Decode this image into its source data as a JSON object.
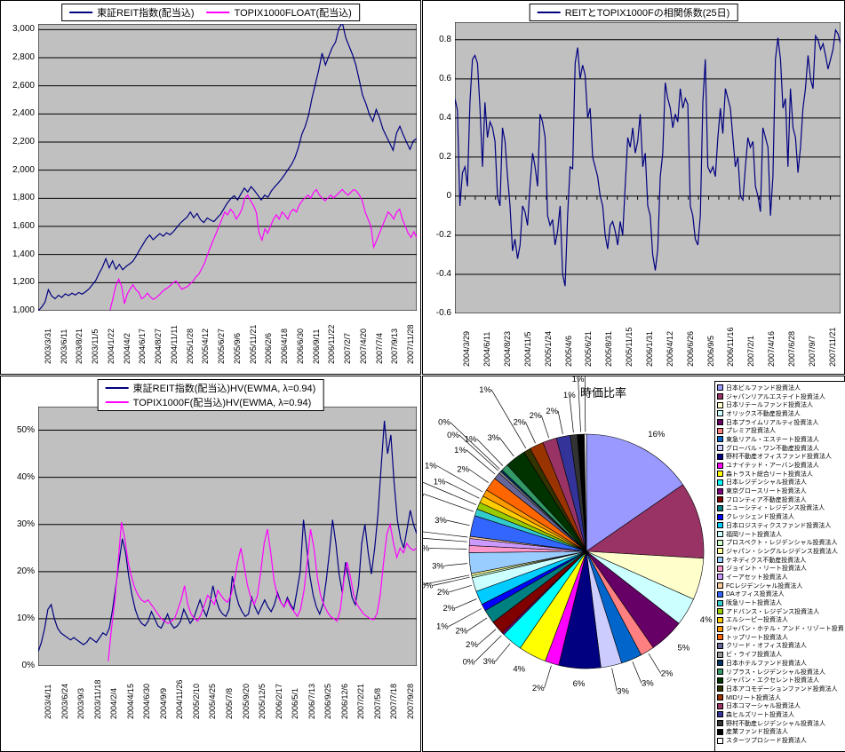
{
  "chart_data": [
    {
      "id": "reit_index",
      "type": "line",
      "title": "",
      "legend_position": "top",
      "plot_bg": "#C0C0C0",
      "grid": true,
      "ylim": [
        1000,
        3040
      ],
      "y_ticks": [
        {
          "v": 1000,
          "label": "1,000"
        },
        {
          "v": 1200,
          "label": "1,200"
        },
        {
          "v": 1400,
          "label": "1,400"
        },
        {
          "v": 1600,
          "label": "1,600"
        },
        {
          "v": 1800,
          "label": "1,800"
        },
        {
          "v": 2000,
          "label": "2,000"
        },
        {
          "v": 2200,
          "label": "2,200"
        },
        {
          "v": 2400,
          "label": "2,400"
        },
        {
          "v": 2600,
          "label": "2,600"
        },
        {
          "v": 2800,
          "label": "2,800"
        },
        {
          "v": 3000,
          "label": "3,000"
        }
      ],
      "x_labels": [
        "2003/3/31",
        "2003/6/11",
        "2003/8/21",
        "2003/11/5",
        "2004/1/22",
        "2004/4/2",
        "2004/6/17",
        "2004/8/27",
        "2004/11/11",
        "2005/1/28",
        "2005/4/12",
        "2005/6/27",
        "2005/9/6",
        "2005/11/21",
        "2006/2/6",
        "2006/4/18",
        "2006/6/30",
        "2006/9/11",
        "2006/11/22",
        "2007/2/7",
        "2007/4/20",
        "2007/7/4",
        "2007/9/13",
        "2007/11/28"
      ],
      "series": [
        {
          "name": "東証REIT指数(配当込)",
          "color": "#000080",
          "x0": 0,
          "x1": 1,
          "values": [
            1000,
            1025,
            1060,
            1150,
            1105,
            1085,
            1110,
            1095,
            1120,
            1108,
            1125,
            1112,
            1130,
            1118,
            1135,
            1155,
            1185,
            1215,
            1265,
            1310,
            1370,
            1305,
            1355,
            1295,
            1330,
            1292,
            1315,
            1332,
            1352,
            1390,
            1432,
            1472,
            1512,
            1538,
            1505,
            1528,
            1548,
            1530,
            1555,
            1540,
            1562,
            1592,
            1622,
            1645,
            1665,
            1702,
            1662,
            1692,
            1648,
            1628,
            1660,
            1645,
            1635,
            1662,
            1688,
            1728,
            1768,
            1798,
            1818,
            1788,
            1832,
            1872,
            1845,
            1882,
            1855,
            1822,
            1788,
            1822,
            1808,
            1852,
            1882,
            1908,
            1938,
            1972,
            2008,
            2042,
            2092,
            2162,
            2255,
            2312,
            2392,
            2512,
            2612,
            2712,
            2832,
            2748,
            2812,
            2872,
            2912,
            3012,
            3048,
            2942,
            2882,
            2822,
            2748,
            2642,
            2532,
            2472,
            2395,
            2348,
            2432,
            2372,
            2292,
            2242,
            2192,
            2142,
            2262,
            2312,
            2252,
            2198,
            2148,
            2208,
            2225
          ]
        },
        {
          "name": "TOPIX1000FLOAT(配当込)",
          "color": "#FF00FF",
          "x0": 0.19,
          "x1": 1,
          "values": [
            1005,
            1090,
            1180,
            1225,
            1175,
            1050,
            1120,
            1155,
            1185,
            1150,
            1130,
            1085,
            1100,
            1125,
            1100,
            1080,
            1092,
            1110,
            1132,
            1150,
            1162,
            1180,
            1200,
            1212,
            1182,
            1152,
            1163,
            1172,
            1192,
            1212,
            1242,
            1262,
            1300,
            1342,
            1400,
            1452,
            1502,
            1552,
            1602,
            1652,
            1702,
            1682,
            1722,
            1700,
            1652,
            1682,
            1722,
            1800,
            1822,
            1782,
            1750,
            1700,
            1552,
            1502,
            1582,
            1552,
            1602,
            1652,
            1682,
            1652,
            1702,
            1682,
            1652,
            1702,
            1722,
            1702,
            1752,
            1782,
            1802,
            1822,
            1800,
            1842,
            1862,
            1822,
            1802,
            1782,
            1802,
            1822,
            1802,
            1822,
            1842,
            1862,
            1840,
            1822,
            1842,
            1862,
            1850,
            1822,
            1782,
            1702,
            1652,
            1602,
            1452,
            1502,
            1552,
            1602,
            1652,
            1702,
            1682,
            1652,
            1702,
            1722,
            1652,
            1602,
            1552,
            1522,
            1562,
            1520
          ]
        }
      ]
    },
    {
      "id": "correlation",
      "type": "line",
      "title": "",
      "legend_position": "top",
      "plot_bg": "#C0C0C0",
      "grid": true,
      "ylim": [
        -0.6,
        0.89
      ],
      "axis_cross_y": 0,
      "y_ticks": [
        {
          "v": -0.6,
          "label": "-0.6"
        },
        {
          "v": -0.4,
          "label": "-0.4"
        },
        {
          "v": -0.2,
          "label": "-0.2"
        },
        {
          "v": 0,
          "label": "0"
        },
        {
          "v": 0.2,
          "label": "0.2"
        },
        {
          "v": 0.4,
          "label": "0.4"
        },
        {
          "v": 0.6,
          "label": "0.6"
        },
        {
          "v": 0.8,
          "label": "0.8"
        }
      ],
      "x_labels": [
        "2004/3/29",
        "2004/6/11",
        "2004/8/23",
        "2004/11/5",
        "2005/1/24",
        "2005/4/6",
        "2005/6/21",
        "2005/8/31",
        "2005/11/15",
        "2006/1/31",
        "2006/4/12",
        "2006/6/26",
        "2006/9/5",
        "2006/11/16",
        "2007/2/1",
        "2007/4/16",
        "2007/6/28",
        "2007/9/7",
        "2007/11/21"
      ],
      "series": [
        {
          "name": "REITとTOPIX1000Fの相関係数(25日)",
          "color": "#000080",
          "x0": 0,
          "x1": 1,
          "values": [
            0.5,
            0.44,
            -0.05,
            0.12,
            0.15,
            0.05,
            0.48,
            0.7,
            0.72,
            0.68,
            0.45,
            0.15,
            0.48,
            0.3,
            0.38,
            0.35,
            0.28,
            0.0,
            -0.05,
            0.35,
            0.28,
            0.1,
            -0.05,
            -0.28,
            -0.22,
            -0.32,
            -0.25,
            -0.05,
            -0.08,
            -0.15,
            0.05,
            0.22,
            0.15,
            0.05,
            0.42,
            0.38,
            0.3,
            -0.1,
            -0.15,
            -0.12,
            -0.25,
            -0.18,
            -0.05,
            -0.4,
            -0.46,
            -0.1,
            0.15,
            0.14,
            0.68,
            0.76,
            0.6,
            0.67,
            0.62,
            0.4,
            0.45,
            0.2,
            0.15,
            0.1,
            0.0,
            -0.05,
            -0.2,
            -0.27,
            -0.15,
            -0.13,
            -0.18,
            -0.25,
            -0.13,
            -0.2,
            0.05,
            0.3,
            0.25,
            0.35,
            0.22,
            0.28,
            0.42,
            0.15,
            0.22,
            -0.05,
            -0.1,
            -0.3,
            -0.38,
            -0.27,
            0.1,
            0.22,
            0.58,
            0.5,
            0.45,
            0.35,
            0.42,
            0.38,
            0.55,
            0.45,
            0.5,
            0.47,
            -0.05,
            -0.1,
            -0.22,
            -0.25,
            -0.1,
            0.48,
            0.7,
            0.15,
            0.12,
            0.15,
            0.1,
            0.3,
            0.45,
            0.32,
            0.55,
            0.5,
            0.45,
            0.3,
            0.15,
            0.2,
            0.0,
            -0.02,
            0.15,
            0.3,
            0.25,
            0.28,
            0.05,
            0.0,
            -0.08,
            0.35,
            0.3,
            0.25,
            -0.1,
            0.1,
            0.7,
            0.81,
            0.7,
            0.45,
            0.5,
            0.15,
            0.55,
            0.35,
            0.3,
            0.12,
            0.25,
            0.45,
            0.55,
            0.72,
            0.6,
            0.55,
            0.82,
            0.8,
            0.75,
            0.78,
            0.72,
            0.65,
            0.7,
            0.75,
            0.85,
            0.83,
            0.78
          ]
        }
      ]
    },
    {
      "id": "hv",
      "type": "line",
      "title": "",
      "legend_position": "top",
      "plot_bg": "#C0C0C0",
      "grid": true,
      "ylim": [
        0,
        55
      ],
      "y_ticks": [
        {
          "v": 0,
          "label": "0%"
        },
        {
          "v": 10,
          "label": "10%"
        },
        {
          "v": 20,
          "label": "20%"
        },
        {
          "v": 30,
          "label": "30%"
        },
        {
          "v": 40,
          "label": "40%"
        },
        {
          "v": 50,
          "label": "50%"
        }
      ],
      "x_labels": [
        "2003/4/11",
        "2003/6/24",
        "2003/9/3",
        "2003/11/18",
        "2004/2/4",
        "2004/4/15",
        "2004/6/30",
        "2004/9/9",
        "2004/11/26",
        "2005/2/10",
        "2005/4/25",
        "2005/7/8",
        "2005/9/20",
        "2005/12/5",
        "2006/2/17",
        "2006/5/1",
        "2006/7/13",
        "2006/9/25",
        "2006/12/6",
        "2007/2/21",
        "2007/5/8",
        "2007/7/18",
        "2007/9/28"
      ],
      "series": [
        {
          "name": "東証REIT指数(配当込)HV(EWMA, λ=0.94)",
          "color": "#000080",
          "x0": 0,
          "x1": 1,
          "values": [
            3,
            5,
            8,
            12,
            13,
            10,
            8,
            7,
            6.5,
            6,
            5.5,
            6,
            5.5,
            5,
            4.5,
            5,
            6,
            5.5,
            5,
            6,
            7,
            6.5,
            8,
            12,
            17,
            22,
            27,
            24,
            19,
            15,
            12,
            10,
            9,
            8.5,
            9.5,
            11.5,
            10,
            8.5,
            8,
            9.5,
            11,
            9,
            8,
            8.5,
            9.5,
            12,
            10.5,
            9,
            10,
            12,
            14,
            12,
            10.5,
            13,
            17,
            14,
            12,
            11,
            10.5,
            12,
            19,
            15.5,
            13,
            11.5,
            10.5,
            11,
            14.5,
            12.5,
            11,
            12.5,
            14,
            12.5,
            11.5,
            13,
            15.5,
            13.5,
            12.5,
            14.5,
            13,
            12,
            16,
            20,
            31,
            25,
            19,
            15,
            12.5,
            11,
            13,
            18,
            24,
            31,
            26,
            19.5,
            15.5,
            22,
            18.5,
            14.5,
            13,
            17,
            26,
            30,
            24,
            19.5,
            25,
            32,
            42,
            52,
            45,
            49,
            39,
            31,
            27,
            25,
            29,
            33,
            30,
            28
          ]
        },
        {
          "name": "TOPIX1000F(配当込)HV(EWMA, λ=0.94)",
          "color": "#FF00FF",
          "x0": 0.185,
          "x1": 1,
          "values": [
            1,
            8,
            14,
            22,
            30.5,
            27,
            22,
            19,
            16.5,
            15,
            14,
            13.5,
            14,
            13,
            12,
            11,
            10,
            9.5,
            9,
            9.5,
            10,
            12,
            14,
            17,
            13,
            11,
            10,
            9.5,
            11,
            13,
            15,
            14,
            13,
            16,
            15,
            14,
            13.5,
            15,
            18,
            22,
            25,
            21,
            17,
            14.5,
            13,
            15,
            20,
            26,
            29,
            24,
            18,
            15,
            13.5,
            12.5,
            14,
            12.5,
            11.5,
            10.5,
            12,
            16,
            22,
            29,
            25,
            19,
            15,
            13,
            11.5,
            10.5,
            10,
            9.5,
            12,
            18,
            22,
            19,
            15,
            13,
            12,
            11,
            10.5,
            10,
            9.8,
            11,
            15,
            22,
            28,
            30,
            26,
            23,
            25,
            24,
            26,
            25,
            24.5,
            25
          ]
        }
      ]
    },
    {
      "id": "pie",
      "type": "pie",
      "title": "時価比率",
      "slices": [
        {
          "name": "日本ビルファンド投資法人",
          "color": "#9999FF",
          "pct": 16
        },
        {
          "name": "ジャパンリアルエステイト投資法人",
          "color": "#993366",
          "pct": 11
        },
        {
          "name": "日本リテールファンド投資法人",
          "color": "#FFFFCC",
          "pct": 6
        },
        {
          "name": "オリックス不動産投資法人",
          "color": "#CCFFFF",
          "pct": 4
        },
        {
          "name": "日本プライムリアルティ投資法人",
          "color": "#660066",
          "pct": 5
        },
        {
          "name": "プレミア投資法人",
          "color": "#FF8080",
          "pct": 2
        },
        {
          "name": "東急リアル・エステート投資法人",
          "color": "#0066CC",
          "pct": 3
        },
        {
          "name": "グローバル・ワン不動産投資法人",
          "color": "#CCCCFF",
          "pct": 3
        },
        {
          "name": "野村不動産オフィスファンド投資法人",
          "color": "#000080",
          "pct": 6
        },
        {
          "name": "ユナイテッド・アーバン投資法人",
          "color": "#FF00FF",
          "pct": 2
        },
        {
          "name": "森トラスト総合リート投資法人",
          "color": "#FFFF00",
          "pct": 4
        },
        {
          "name": "日本レジデンシャル投資法人",
          "color": "#00FFFF",
          "pct": 3
        },
        {
          "name": "東京グロースリート投資法人",
          "color": "#800080",
          "pct": 0
        },
        {
          "name": "フロンティア不動産投資法人",
          "color": "#800000",
          "pct": 2
        },
        {
          "name": "ニューシティ・レジデンス投資法人",
          "color": "#008080",
          "pct": 2
        },
        {
          "name": "クレッシェンド投資法人",
          "color": "#0000FF",
          "pct": 1
        },
        {
          "name": "日本ロジスティクスファンド投資法人",
          "color": "#00CCFF",
          "pct": 2
        },
        {
          "name": "福岡リート投資法人",
          "color": "#CCFFFF",
          "pct": 2
        },
        {
          "name": "プロスペクト・レジデンシャル投資法人",
          "color": "#CCFFCC",
          "pct": 0
        },
        {
          "name": "ジャパン・シングルレジデンス投資法人",
          "color": "#FFFF99",
          "pct": 0
        },
        {
          "name": "ケネディクス不動産投資法人",
          "color": "#99CCFF",
          "pct": 3
        },
        {
          "name": "ジョイント・リート投資法人",
          "color": "#FF99CC",
          "pct": 1
        },
        {
          "name": "イーアセット投資法人",
          "color": "#CC99FF",
          "pct": 1
        },
        {
          "name": "FCレジデンシャル投資法人",
          "color": "#FFCC99",
          "pct": 0
        },
        {
          "name": "DAオフィス投資法人",
          "color": "#3366FF",
          "pct": 3
        },
        {
          "name": "阪急リート投資法人",
          "color": "#33CCCC",
          "pct": 1
        },
        {
          "name": "アドバンス・レジデンス投資法人",
          "color": "#99CC00",
          "pct": 1
        },
        {
          "name": "エルシーピー投資法人",
          "color": "#FFCC00",
          "pct": 1
        },
        {
          "name": "ジャパン・ホテル・アンド・リゾート投資法人",
          "color": "#FF9900",
          "pct": 1
        },
        {
          "name": "トップリート投資法人",
          "color": "#FF6600",
          "pct": 2
        },
        {
          "name": "クリード・オフィス投資法人",
          "color": "#666699",
          "pct": 1
        },
        {
          "name": "ビ・ライフ投資法人",
          "color": "#969696",
          "pct": 0
        },
        {
          "name": "日本ホテルファンド投資法人",
          "color": "#003366",
          "pct": 0
        },
        {
          "name": "リプラス・レジデンシャル投資法人",
          "color": "#339966",
          "pct": 1
        },
        {
          "name": "ジャパン・エクセレント投資法人",
          "color": "#003300",
          "pct": 3
        },
        {
          "name": "日本アコモデーションファンド投資法人",
          "color": "#333300",
          "pct": 1
        },
        {
          "name": "MIDリート投資法人",
          "color": "#993300",
          "pct": 2
        },
        {
          "name": "日本コマーシャル投資法人",
          "color": "#993366",
          "pct": 2
        },
        {
          "name": "森ヒルズリート投資法人",
          "color": "#333399",
          "pct": 2
        },
        {
          "name": "野村不動産レジデンシャル投資法人",
          "color": "#333333",
          "pct": 1
        },
        {
          "name": "産業ファンド投資法人",
          "color": "#000000",
          "pct": 1
        },
        {
          "name": "スターツプロシード投資法人",
          "color": "#FFFFFF",
          "pct": 0
        }
      ]
    }
  ],
  "colors": {
    "line_navy": "#000080",
    "line_magenta": "#FF00FF",
    "plot_bg": "#C0C0C0",
    "grid": "#000000"
  }
}
